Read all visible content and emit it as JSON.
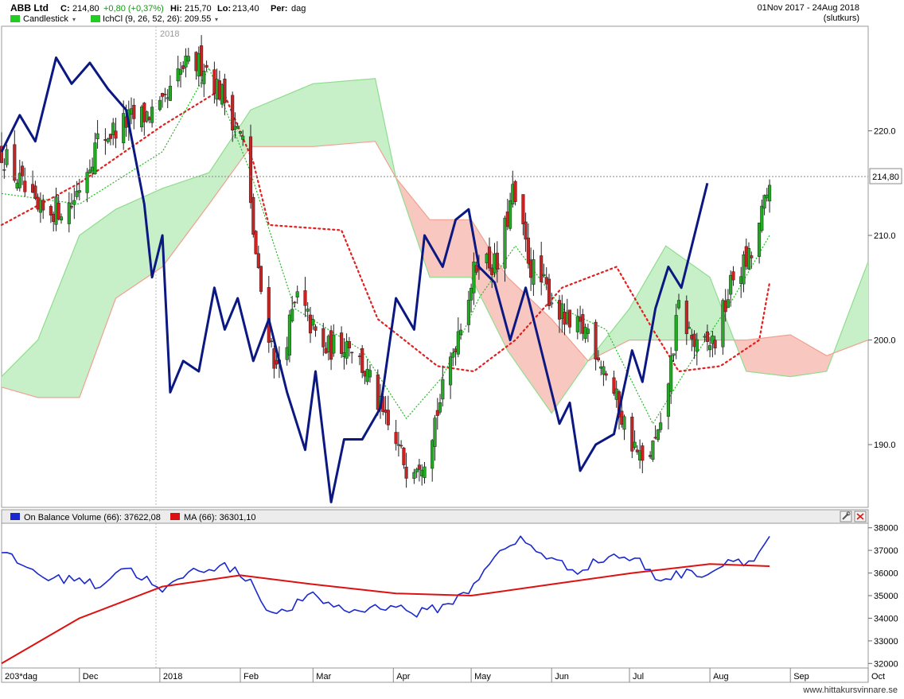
{
  "header": {
    "symbol": "ABB Ltd",
    "close_label": "C:",
    "close_value": "214,80",
    "change": "+0,80 (+0,37%)",
    "hi_label": "Hi:",
    "hi_value": "215,70",
    "lo_label": "Lo:",
    "lo_value": "213,40",
    "period_label": "Per:",
    "period_value": "dag",
    "date_range": "01Nov 2017 - 24Aug 2018",
    "price_basis": "(slutkurs)"
  },
  "legend_main": {
    "candlestick_label": "Candlestick",
    "ichimoku_label": "IchCl (9, 26, 52, 26): 209.55"
  },
  "legend_lower": {
    "obv_label": "On Balance Volume (66): 37622,08",
    "ma_label": "MA (66): 36301,10"
  },
  "year_marker": "2018",
  "last_price_tag": "214,80",
  "footer": {
    "period_selector": "203*dag",
    "watermark": "www.hittakursvinnare.se"
  },
  "colors": {
    "candle_up": "#22aa22",
    "candle_down": "#cc2222",
    "overlay_line": "#0c1882",
    "cloud_bull": "#c8f0c8",
    "cloud_bear": "#f8c8c0",
    "obv": "#1a28d0",
    "ma": "#dd1111"
  },
  "chart_data": [
    {
      "type": "candlestick",
      "title": "ABB Ltd",
      "x_ticks": [
        "Dec",
        "2018",
        "Feb",
        "Mar",
        "Apr",
        "May",
        "Jun",
        "Jul",
        "Aug",
        "Sep",
        "Oct"
      ],
      "y_ticks": [
        "190.0",
        "200.0",
        "210.0",
        "220.0"
      ],
      "ylim": [
        184,
        230
      ],
      "last_close": 214.8,
      "grid": false,
      "close_approx": [
        {
          "date": "2017-11-01",
          "value": 218.0
        },
        {
          "date": "2017-11-15",
          "value": 212.0
        },
        {
          "date": "2017-11-28",
          "value": 213.0
        },
        {
          "date": "2017-12-08",
          "value": 219.0
        },
        {
          "date": "2017-12-20",
          "value": 221.0
        },
        {
          "date": "2018-01-02",
          "value": 222.0
        },
        {
          "date": "2018-01-10",
          "value": 226.0
        },
        {
          "date": "2018-01-18",
          "value": 226.5
        },
        {
          "date": "2018-01-26",
          "value": 223.0
        },
        {
          "date": "2018-02-02",
          "value": 219.0
        },
        {
          "date": "2018-02-08",
          "value": 206.0
        },
        {
          "date": "2018-02-15",
          "value": 197.0
        },
        {
          "date": "2018-02-23",
          "value": 204.0
        },
        {
          "date": "2018-03-05",
          "value": 199.0
        },
        {
          "date": "2018-03-15",
          "value": 200.0
        },
        {
          "date": "2018-03-23",
          "value": 196.0
        },
        {
          "date": "2018-03-29",
          "value": 192.0
        },
        {
          "date": "2018-04-06",
          "value": 188.0
        },
        {
          "date": "2018-04-13",
          "value": 189.0
        },
        {
          "date": "2018-04-20",
          "value": 195.0
        },
        {
          "date": "2018-04-27",
          "value": 202.0
        },
        {
          "date": "2018-05-04",
          "value": 208.0
        },
        {
          "date": "2018-05-11",
          "value": 207.0
        },
        {
          "date": "2018-05-17",
          "value": 214.0
        },
        {
          "date": "2018-05-24",
          "value": 207.0
        },
        {
          "date": "2018-06-01",
          "value": 204.0
        },
        {
          "date": "2018-06-08",
          "value": 201.0
        },
        {
          "date": "2018-06-15",
          "value": 201.0
        },
        {
          "date": "2018-06-22",
          "value": 197.0
        },
        {
          "date": "2018-06-29",
          "value": 192.0
        },
        {
          "date": "2018-07-06",
          "value": 188.0
        },
        {
          "date": "2018-07-13",
          "value": 191.0
        },
        {
          "date": "2018-07-20",
          "value": 203.0
        },
        {
          "date": "2018-07-27",
          "value": 199.0
        },
        {
          "date": "2018-08-03",
          "value": 200.0
        },
        {
          "date": "2018-08-10",
          "value": 206.0
        },
        {
          "date": "2018-08-17",
          "value": 208.0
        },
        {
          "date": "2018-08-24",
          "value": 214.8
        }
      ],
      "overlay_line": [
        {
          "date": "2017-11-01",
          "value": 218.0
        },
        {
          "date": "2017-11-08",
          "value": 221.5
        },
        {
          "date": "2017-11-14",
          "value": 219.0
        },
        {
          "date": "2017-11-22",
          "value": 227.0
        },
        {
          "date": "2017-11-28",
          "value": 224.5
        },
        {
          "date": "2017-12-05",
          "value": 226.5
        },
        {
          "date": "2017-12-12",
          "value": 224.0
        },
        {
          "date": "2017-12-19",
          "value": 222.0
        },
        {
          "date": "2017-12-26",
          "value": 213.0
        },
        {
          "date": "2017-12-29",
          "value": 206.0
        },
        {
          "date": "2018-01-02",
          "value": 210.0
        },
        {
          "date": "2018-01-05",
          "value": 195.0
        },
        {
          "date": "2018-01-10",
          "value": 198.0
        },
        {
          "date": "2018-01-16",
          "value": 197.0
        },
        {
          "date": "2018-01-22",
          "value": 205.0
        },
        {
          "date": "2018-01-26",
          "value": 201.0
        },
        {
          "date": "2018-01-31",
          "value": 204.0
        },
        {
          "date": "2018-02-06",
          "value": 198.0
        },
        {
          "date": "2018-02-12",
          "value": 202.0
        },
        {
          "date": "2018-02-19",
          "value": 195.0
        },
        {
          "date": "2018-02-26",
          "value": 189.5
        },
        {
          "date": "2018-03-02",
          "value": 197.0
        },
        {
          "date": "2018-03-08",
          "value": 184.5
        },
        {
          "date": "2018-03-13",
          "value": 190.5
        },
        {
          "date": "2018-03-20",
          "value": 190.5
        },
        {
          "date": "2018-03-27",
          "value": 193.5
        },
        {
          "date": "2018-04-02",
          "value": 204.0
        },
        {
          "date": "2018-04-09",
          "value": 201.0
        },
        {
          "date": "2018-04-13",
          "value": 210.0
        },
        {
          "date": "2018-04-20",
          "value": 207.0
        },
        {
          "date": "2018-04-25",
          "value": 211.5
        },
        {
          "date": "2018-04-30",
          "value": 212.5
        },
        {
          "date": "2018-05-04",
          "value": 207.0
        },
        {
          "date": "2018-05-10",
          "value": 205.5
        },
        {
          "date": "2018-05-16",
          "value": 200.0
        },
        {
          "date": "2018-05-22",
          "value": 205.0
        },
        {
          "date": "2018-05-28",
          "value": 199.0
        },
        {
          "date": "2018-06-04",
          "value": 192.0
        },
        {
          "date": "2018-06-08",
          "value": 194.0
        },
        {
          "date": "2018-06-12",
          "value": 187.5
        },
        {
          "date": "2018-06-18",
          "value": 190.0
        },
        {
          "date": "2018-06-25",
          "value": 191.0
        },
        {
          "date": "2018-07-02",
          "value": 199.0
        },
        {
          "date": "2018-07-06",
          "value": 196.0
        },
        {
          "date": "2018-07-11",
          "value": 203.0
        },
        {
          "date": "2018-07-16",
          "value": 207.0
        },
        {
          "date": "2018-07-21",
          "value": 205.0
        },
        {
          "date": "2018-07-25",
          "value": 209.0
        },
        {
          "date": "2018-07-31",
          "value": 215.0
        }
      ],
      "ichimoku": {
        "params": [
          9,
          26,
          52,
          26
        ],
        "value": 209.55,
        "cloud_boundaries": [
          {
            "date": "2017-11-01",
            "senkou_a": 196.5,
            "senkou_b": 195.5
          },
          {
            "date": "2017-11-15",
            "senkou_a": 200.0,
            "senkou_b": 194.5
          },
          {
            "date": "2017-12-01",
            "senkou_a": 210.0,
            "senkou_b": 194.5
          },
          {
            "date": "2017-12-15",
            "senkou_a": 212.5,
            "senkou_b": 204.0
          },
          {
            "date": "2018-01-02",
            "senkou_a": 214.5,
            "senkou_b": 207.0
          },
          {
            "date": "2018-01-20",
            "senkou_a": 216.0,
            "senkou_b": 213.0
          },
          {
            "date": "2018-02-05",
            "senkou_a": 222.0,
            "senkou_b": 218.5
          },
          {
            "date": "2018-03-01",
            "senkou_a": 224.5,
            "senkou_b": 218.5
          },
          {
            "date": "2018-03-25",
            "senkou_a": 225.0,
            "senkou_b": 219.0
          },
          {
            "date": "2018-04-02",
            "senkou_a": 215.5,
            "senkou_b": 215.5
          },
          {
            "date": "2018-04-15",
            "senkou_a": 206.0,
            "senkou_b": 211.5
          },
          {
            "date": "2018-05-01",
            "senkou_a": 206.0,
            "senkou_b": 211.5
          },
          {
            "date": "2018-05-15",
            "senkou_a": 199.0,
            "senkou_b": 206.0
          },
          {
            "date": "2018-06-01",
            "senkou_a": 193.0,
            "senkou_b": 202.0
          },
          {
            "date": "2018-06-15",
            "senkou_a": 198.0,
            "senkou_b": 198.0
          },
          {
            "date": "2018-07-01",
            "senkou_a": 203.0,
            "senkou_b": 200.0
          },
          {
            "date": "2018-07-15",
            "senkou_a": 209.0,
            "senkou_b": 200.0
          },
          {
            "date": "2018-08-01",
            "senkou_a": 206.0,
            "senkou_b": 200.0
          },
          {
            "date": "2018-08-15",
            "senkou_a": 197.0,
            "senkou_b": 200.0
          },
          {
            "date": "2018-09-01",
            "senkou_a": 196.5,
            "senkou_b": 200.5
          },
          {
            "date": "2018-09-15",
            "senkou_a": 197.0,
            "senkou_b": 198.5
          },
          {
            "date": "2018-10-01",
            "senkou_a": 207.5,
            "senkou_b": 200.0
          }
        ],
        "kijun_approx": [
          {
            "date": "2017-11-01",
            "value": 211.0
          },
          {
            "date": "2017-12-01",
            "value": 215.0
          },
          {
            "date": "2018-01-02",
            "value": 220.5
          },
          {
            "date": "2018-01-25",
            "value": 224.0
          },
          {
            "date": "2018-02-06",
            "value": 217.0
          },
          {
            "date": "2018-02-12",
            "value": 211.0
          },
          {
            "date": "2018-03-12",
            "value": 210.5
          },
          {
            "date": "2018-03-26",
            "value": 202.0
          },
          {
            "date": "2018-04-18",
            "value": 197.5
          },
          {
            "date": "2018-05-02",
            "value": 197.0
          },
          {
            "date": "2018-05-18",
            "value": 200.0
          },
          {
            "date": "2018-06-05",
            "value": 205.0
          },
          {
            "date": "2018-06-26",
            "value": 207.0
          },
          {
            "date": "2018-07-10",
            "value": 201.0
          },
          {
            "date": "2018-07-20",
            "value": 197.0
          },
          {
            "date": "2018-08-05",
            "value": 197.5
          },
          {
            "date": "2018-08-20",
            "value": 200.0
          },
          {
            "date": "2018-08-24",
            "value": 205.5
          }
        ],
        "tenkan_approx": [
          {
            "date": "2017-11-01",
            "value": 214.0
          },
          {
            "date": "2017-12-01",
            "value": 213.0
          },
          {
            "date": "2018-01-02",
            "value": 218.0
          },
          {
            "date": "2018-01-20",
            "value": 226.0
          },
          {
            "date": "2018-02-05",
            "value": 216.0
          },
          {
            "date": "2018-02-22",
            "value": 203.0
          },
          {
            "date": "2018-03-20",
            "value": 199.0
          },
          {
            "date": "2018-04-06",
            "value": 192.5
          },
          {
            "date": "2018-04-20",
            "value": 196.5
          },
          {
            "date": "2018-05-04",
            "value": 204.0
          },
          {
            "date": "2018-05-18",
            "value": 209.0
          },
          {
            "date": "2018-06-05",
            "value": 203.0
          },
          {
            "date": "2018-06-22",
            "value": 201.0
          },
          {
            "date": "2018-07-10",
            "value": 192.0
          },
          {
            "date": "2018-07-25",
            "value": 198.0
          },
          {
            "date": "2018-08-10",
            "value": 204.0
          },
          {
            "date": "2018-08-24",
            "value": 210.0
          }
        ]
      }
    },
    {
      "type": "line",
      "title": "On Balance Volume (66)",
      "y_ticks": [
        "32000",
        "33000",
        "34000",
        "35000",
        "36000",
        "37000",
        "38000"
      ],
      "ylim": [
        31800,
        38200
      ],
      "series": [
        {
          "name": "On Balance Volume (66): 37622,08",
          "points": [
            {
              "date": "2017-11-01",
              "value": 36900
            },
            {
              "date": "2017-11-10",
              "value": 36300
            },
            {
              "date": "2017-11-20",
              "value": 35700
            },
            {
              "date": "2017-11-30",
              "value": 35800
            },
            {
              "date": "2017-12-08",
              "value": 35400
            },
            {
              "date": "2017-12-18",
              "value": 36300
            },
            {
              "date": "2017-12-27",
              "value": 35700
            },
            {
              "date": "2018-01-02",
              "value": 35100
            },
            {
              "date": "2018-01-10",
              "value": 35900
            },
            {
              "date": "2018-01-17",
              "value": 36200
            },
            {
              "date": "2018-01-26",
              "value": 36300
            },
            {
              "date": "2018-02-05",
              "value": 35700
            },
            {
              "date": "2018-02-09",
              "value": 34800
            },
            {
              "date": "2018-02-15",
              "value": 34100
            },
            {
              "date": "2018-02-28",
              "value": 35000
            },
            {
              "date": "2018-03-15",
              "value": 34300
            },
            {
              "date": "2018-04-01",
              "value": 34600
            },
            {
              "date": "2018-04-09",
              "value": 34200
            },
            {
              "date": "2018-04-20",
              "value": 34500
            },
            {
              "date": "2018-04-30",
              "value": 35200
            },
            {
              "date": "2018-05-08",
              "value": 36500
            },
            {
              "date": "2018-05-20",
              "value": 37500
            },
            {
              "date": "2018-06-01",
              "value": 36600
            },
            {
              "date": "2018-06-10",
              "value": 36100
            },
            {
              "date": "2018-06-25",
              "value": 36800
            },
            {
              "date": "2018-07-05",
              "value": 36500
            },
            {
              "date": "2018-07-12",
              "value": 35700
            },
            {
              "date": "2018-07-22",
              "value": 36000
            },
            {
              "date": "2018-08-01",
              "value": 36000
            },
            {
              "date": "2018-08-10",
              "value": 36700
            },
            {
              "date": "2018-08-17",
              "value": 36400
            },
            {
              "date": "2018-08-24",
              "value": 37622
            }
          ]
        },
        {
          "name": "MA (66): 36301,10",
          "points": [
            {
              "date": "2017-11-01",
              "value": 32000
            },
            {
              "date": "2017-12-01",
              "value": 34000
            },
            {
              "date": "2018-01-02",
              "value": 35400
            },
            {
              "date": "2018-02-01",
              "value": 35900
            },
            {
              "date": "2018-03-01",
              "value": 35500
            },
            {
              "date": "2018-04-02",
              "value": 35100
            },
            {
              "date": "2018-05-01",
              "value": 35000
            },
            {
              "date": "2018-06-01",
              "value": 35500
            },
            {
              "date": "2018-07-02",
              "value": 36000
            },
            {
              "date": "2018-08-01",
              "value": 36400
            },
            {
              "date": "2018-08-24",
              "value": 36301
            }
          ]
        }
      ]
    }
  ]
}
